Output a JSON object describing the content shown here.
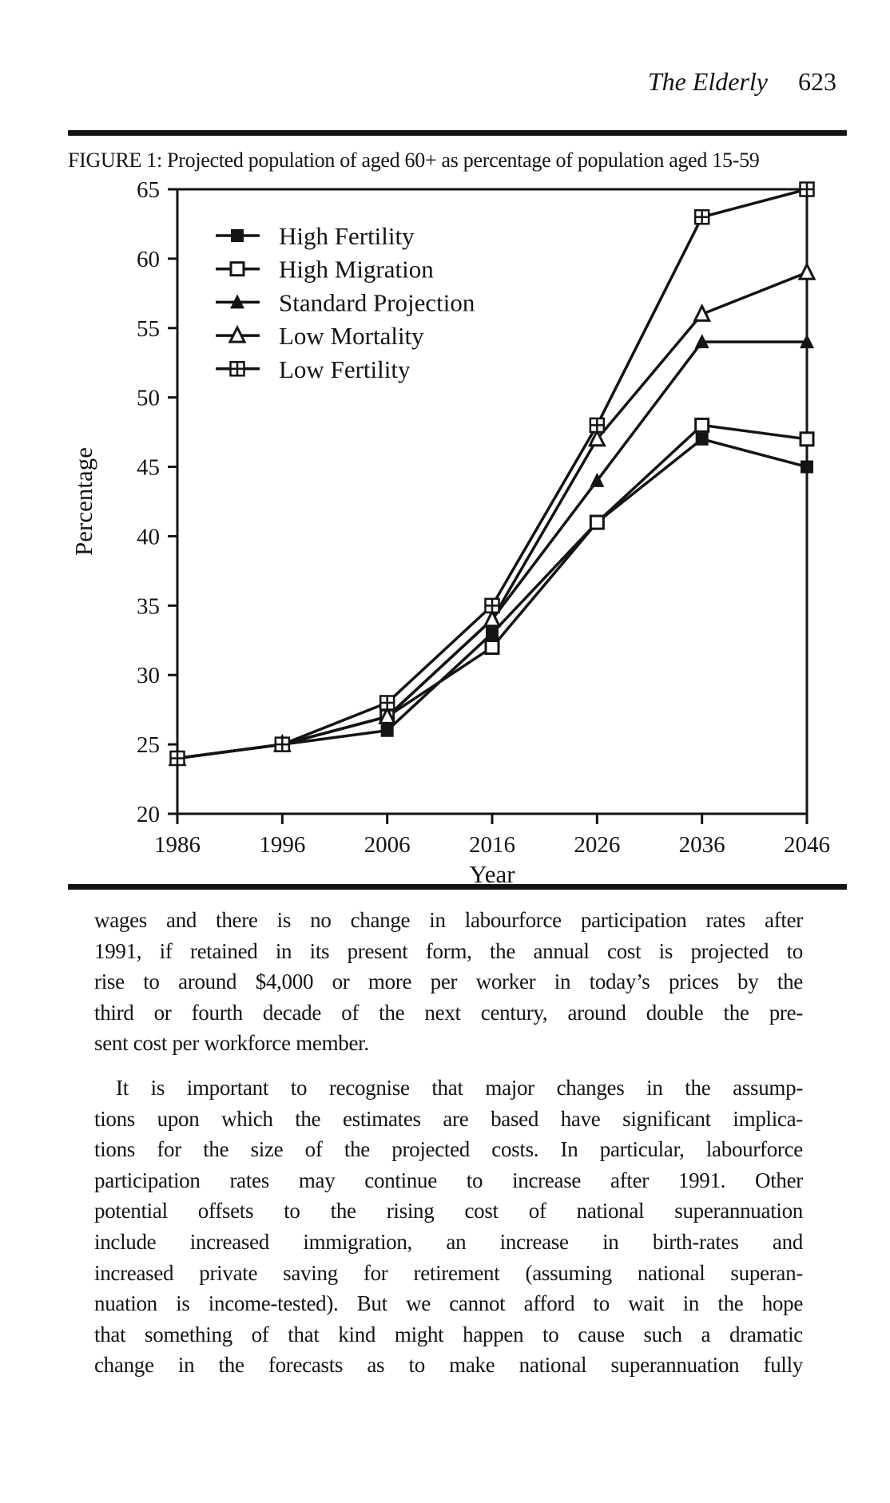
{
  "header": {
    "title": "The Elderly",
    "page_number": "623"
  },
  "figure": {
    "caption": "FIGURE 1: Projected population of aged 60+ as percentage of population aged 15-59"
  },
  "chart_data": {
    "type": "line",
    "title": "Projected population of aged 60+ as percentage of population aged 15-59",
    "xlabel": "Year",
    "ylabel": "Percentage",
    "x": [
      1986,
      1996,
      2006,
      2016,
      2026,
      2036,
      2046
    ],
    "ylim": [
      20,
      65
    ],
    "ytick_step": 5,
    "grid": false,
    "legend_position": "top-left",
    "ink_color": "#141414",
    "paper_color": "#ffffff",
    "series": [
      {
        "name": "High Fertility",
        "marker": "filled-square",
        "values": [
          24,
          25,
          26,
          33,
          41,
          47,
          45
        ]
      },
      {
        "name": "High Migration",
        "marker": "open-square",
        "values": [
          24,
          25,
          27,
          32,
          41,
          48,
          47
        ]
      },
      {
        "name": "Standard Projection",
        "marker": "filled-triangle",
        "values": [
          24,
          25,
          27,
          34,
          44,
          54,
          54
        ]
      },
      {
        "name": "Low Mortality",
        "marker": "open-triangle",
        "values": [
          24,
          25,
          27,
          34,
          47,
          56,
          59
        ]
      },
      {
        "name": "Low Fertility",
        "marker": "crossed-square",
        "values": [
          24,
          25,
          28,
          35,
          48,
          63,
          65
        ]
      }
    ]
  },
  "body": {
    "paragraphs": [
      {
        "indent": false,
        "justify_last_line": false,
        "lines": [
          "wages and there is no change in labourforce participation rates after",
          "1991, if retained in its present form, the annual cost is projected to",
          "rise to around $4,000 or more per worker in today’s prices by the",
          "third or fourth decade of the next century, around double the pre-",
          "sent cost per workforce member."
        ]
      },
      {
        "indent": true,
        "justify_last_line": true,
        "lines": [
          "It is important to recognise that major changes in the assump-",
          "tions upon which the estimates are based have significant implica-",
          "tions for the size of the projected costs. In particular, labourforce",
          "participation rates may continue to increase after 1991. Other",
          "potential offsets to the rising cost of national superannuation",
          "include increased immigration, an increase in birth-rates and",
          "increased private saving for retirement (assuming national superan-",
          "nuation is income-tested). But we cannot afford to wait in the hope",
          "that something of that kind might happen to cause such a dramatic",
          "change in the forecasts as to make national superannuation fully"
        ]
      }
    ]
  }
}
